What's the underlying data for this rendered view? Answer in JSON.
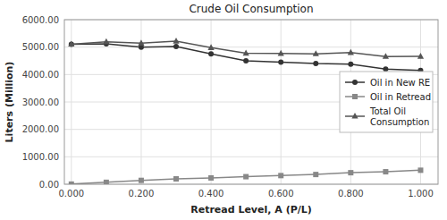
{
  "chart_data": {
    "type": "line",
    "title": "Crude Oil Consumption",
    "xlabel": "Retread Level, A (P/L)",
    "ylabel": "Liters (Million)",
    "x": [
      0.0,
      0.1,
      0.2,
      0.3,
      0.4,
      0.5,
      0.6,
      0.7,
      0.8,
      0.9,
      1.0
    ],
    "series": [
      {
        "name": "Oil in New RE",
        "color": "#333333",
        "marker": "circle",
        "values": [
          5100,
          5120,
          5000,
          5020,
          4750,
          4500,
          4450,
          4400,
          4380,
          4200,
          4150
        ]
      },
      {
        "name": "Oil in Retread",
        "color": "#888888",
        "marker": "square",
        "values": [
          5,
          70,
          140,
          195,
          230,
          275,
          315,
          355,
          420,
          455,
          510
        ]
      },
      {
        "name": "Total Oil\nConsumption",
        "color": "#555555",
        "marker": "triangle",
        "values": [
          5105,
          5190,
          5140,
          5215,
          4980,
          4775,
          4765,
          4755,
          4800,
          4655,
          4660
        ]
      }
    ],
    "xlim": [
      -0.02,
      1.05
    ],
    "ylim": [
      0,
      6000
    ],
    "xticks": [
      {
        "value": 0,
        "label": "0.000"
      },
      {
        "value": 0.2,
        "label": "0.200"
      },
      {
        "value": 0.4,
        "label": "0.400"
      },
      {
        "value": 0.6,
        "label": "0.600"
      },
      {
        "value": 0.8,
        "label": "0.800"
      },
      {
        "value": 1,
        "label": "1.000"
      }
    ],
    "yticks": [
      {
        "value": 0,
        "label": "0.00"
      },
      {
        "value": 1000,
        "label": "1000.00"
      },
      {
        "value": 2000,
        "label": "2000.00"
      },
      {
        "value": 3000,
        "label": "3000.00"
      },
      {
        "value": 4000,
        "label": "4000.00"
      },
      {
        "value": 5000,
        "label": "5000.00"
      },
      {
        "value": 6000,
        "label": "6000.00"
      }
    ],
    "grid": true,
    "legend": "right"
  }
}
